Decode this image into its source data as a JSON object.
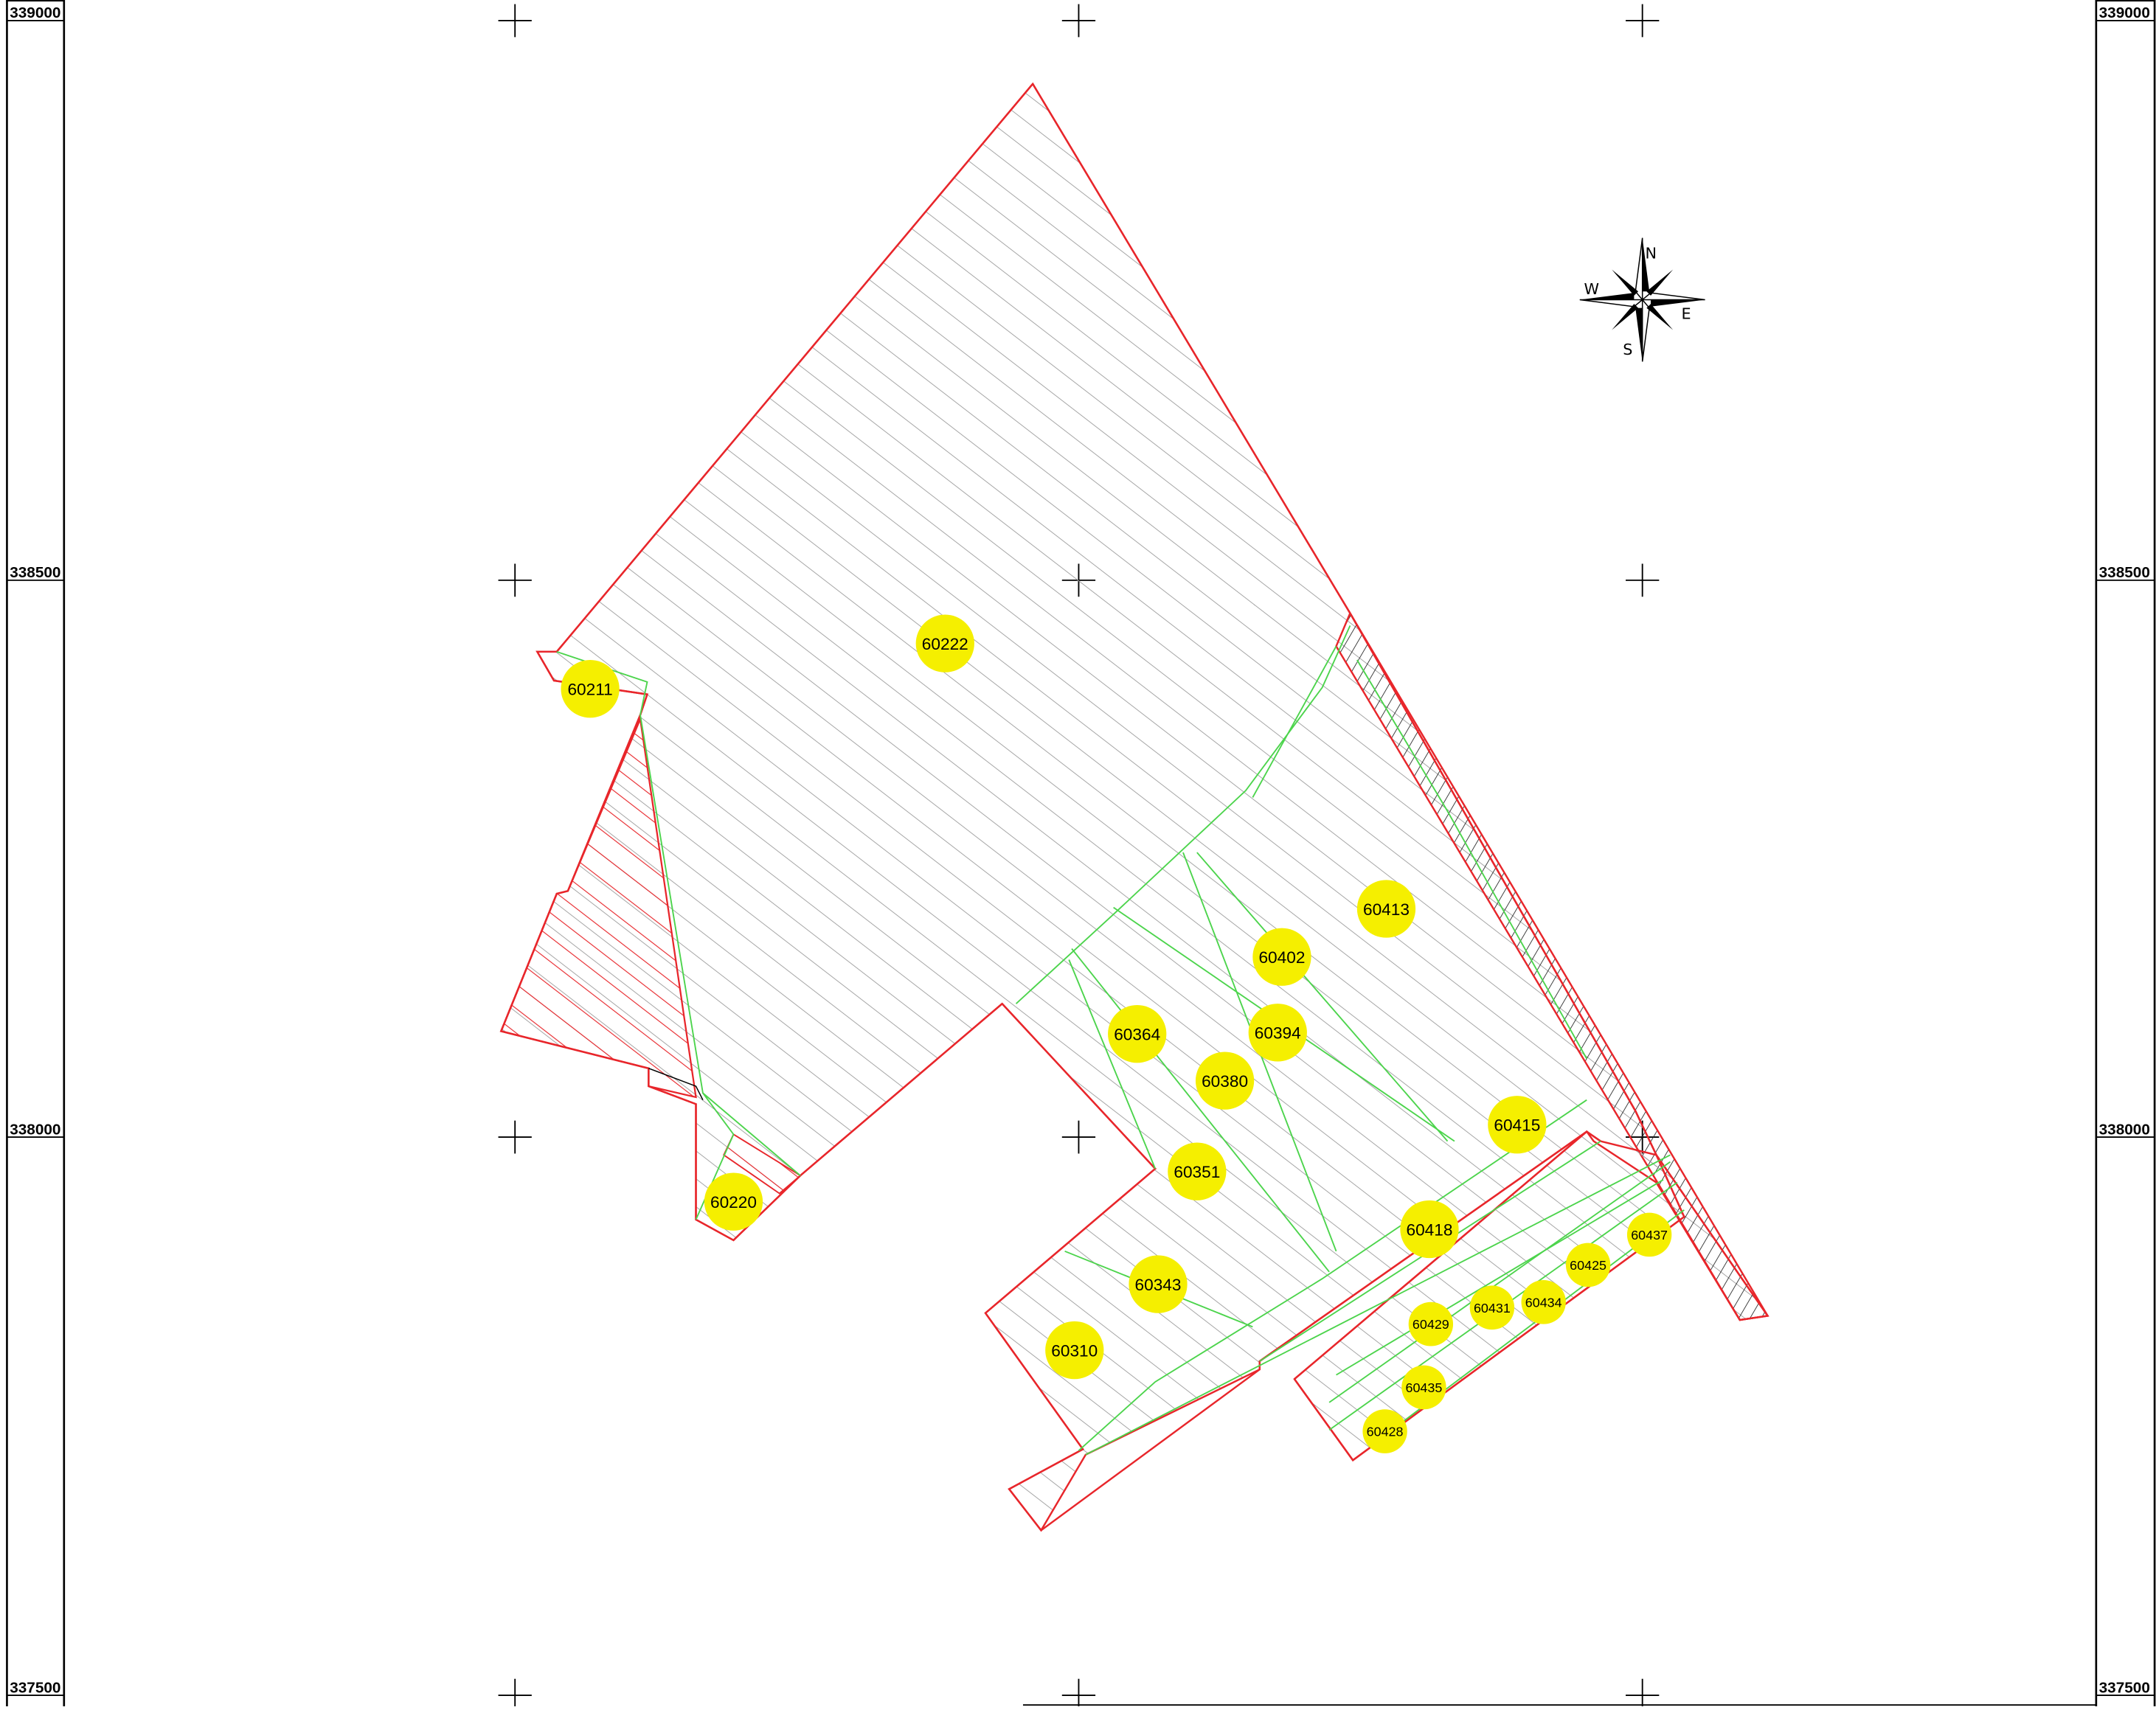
{
  "map": {
    "northing_labels": [
      "339000",
      "338500",
      "338000",
      "337500"
    ],
    "compass": {
      "north": "N",
      "south": "S",
      "east": "E",
      "west": "W"
    },
    "parcels": [
      {
        "id": "60211",
        "size": "large"
      },
      {
        "id": "60222",
        "size": "large"
      },
      {
        "id": "60220",
        "size": "large"
      },
      {
        "id": "60413",
        "size": "large"
      },
      {
        "id": "60402",
        "size": "large"
      },
      {
        "id": "60364",
        "size": "large"
      },
      {
        "id": "60394",
        "size": "large"
      },
      {
        "id": "60380",
        "size": "large"
      },
      {
        "id": "60415",
        "size": "large"
      },
      {
        "id": "60351",
        "size": "large"
      },
      {
        "id": "60418",
        "size": "large"
      },
      {
        "id": "60343",
        "size": "large"
      },
      {
        "id": "60310",
        "size": "large"
      },
      {
        "id": "60437",
        "size": "small"
      },
      {
        "id": "60425",
        "size": "small"
      },
      {
        "id": "60431",
        "size": "small"
      },
      {
        "id": "60434",
        "size": "small"
      },
      {
        "id": "60429",
        "size": "small"
      },
      {
        "id": "60435",
        "size": "small"
      },
      {
        "id": "60428",
        "size": "small"
      }
    ],
    "colors": {
      "boundary": "#e8262b",
      "subdivision": "#4cd44c",
      "hatch": "#9a9a9a",
      "label_fill": "#f5ef00",
      "frame": "#000000"
    }
  }
}
